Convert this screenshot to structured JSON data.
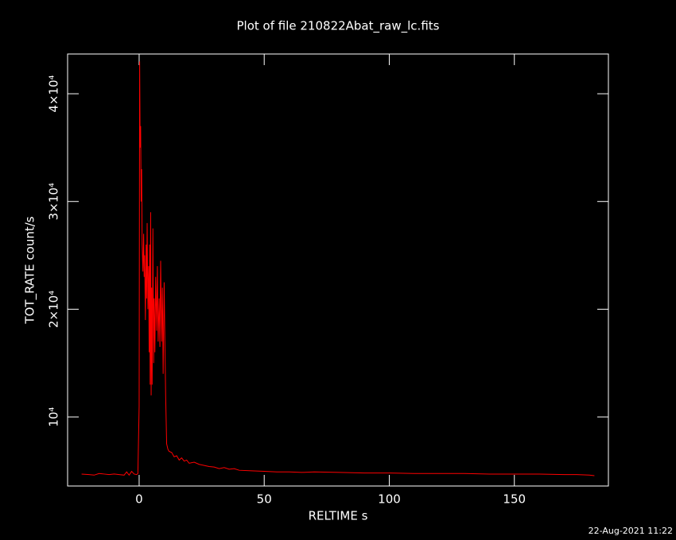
{
  "chart_data": {
    "type": "line",
    "title": "Plot of file 210822Abat_raw_lc.fits",
    "x_label": "RELTIME  s",
    "y_label": "TOT_RATE  count/s",
    "timestamp": "22-Aug-2021 11:22",
    "xlim": [
      -28.6,
      187.6
    ],
    "ylim": [
      3590,
      43690
    ],
    "xticks": [
      0,
      50,
      100,
      150
    ],
    "yticks": [
      {
        "value": 10000,
        "label": "10⁴"
      },
      {
        "value": 20000,
        "label": "2×10⁴"
      },
      {
        "value": 30000,
        "label": "3×10⁴"
      },
      {
        "value": 40000,
        "label": "4×10⁴"
      }
    ],
    "x": [
      -23,
      -20,
      -18,
      -16,
      -14,
      -12,
      -10,
      -8,
      -6,
      -5,
      -4,
      -3,
      -2,
      -1,
      -0.5,
      0,
      0.2,
      0.4,
      0.6,
      0.8,
      1.0,
      1.2,
      1.5,
      1.8,
      2.0,
      2.2,
      2.5,
      2.8,
      3.0,
      3.2,
      3.5,
      3.8,
      4.0,
      4.2,
      4.4,
      4.6,
      4.8,
      5.0,
      5.2,
      5.5,
      5.8,
      6.0,
      6.3,
      6.6,
      7.0,
      7.3,
      7.6,
      8.0,
      8.3,
      8.6,
      9.0,
      9.3,
      9.6,
      10.0,
      10.3,
      10.6,
      11.0,
      11.5,
      12,
      13,
      14,
      15,
      16,
      17,
      18,
      19,
      20,
      22,
      24,
      26,
      28,
      30,
      32,
      34,
      36,
      38,
      40,
      45,
      50,
      55,
      60,
      65,
      70,
      80,
      90,
      100,
      110,
      120,
      130,
      140,
      150,
      160,
      170,
      175,
      180,
      182
    ],
    "series": [
      {
        "color": "#ff0000",
        "values": [
          4700,
          4650,
          4600,
          4750,
          4700,
          4650,
          4700,
          4650,
          4600,
          4900,
          4600,
          4950,
          4700,
          4650,
          4750,
          11000,
          43000,
          35000,
          37000,
          30000,
          33000,
          26000,
          23500,
          27000,
          23000,
          25000,
          19000,
          26000,
          21000,
          28000,
          20000,
          24000,
          16000,
          26000,
          13000,
          29000,
          12000,
          22000,
          13000,
          27500,
          15000,
          21000,
          16000,
          23000,
          18000,
          24000,
          17000,
          21000,
          16500,
          24500,
          17000,
          22000,
          14000,
          22500,
          17000,
          12000,
          7500,
          7000,
          6800,
          6700,
          6300,
          6400,
          6000,
          6200,
          5900,
          6000,
          5700,
          5800,
          5600,
          5500,
          5400,
          5350,
          5200,
          5300,
          5150,
          5200,
          5050,
          5000,
          4950,
          4900,
          4900,
          4850,
          4900,
          4850,
          4800,
          4800,
          4750,
          4750,
          4750,
          4700,
          4700,
          4700,
          4650,
          4650,
          4600,
          4550
        ]
      }
    ],
    "axis_color": "#ffffff"
  }
}
